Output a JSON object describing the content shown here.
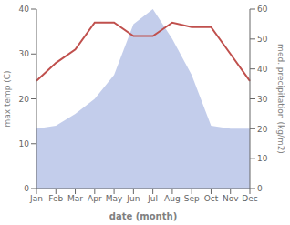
{
  "chart_data": {
    "type": "line",
    "categories": [
      "Jan",
      "Feb",
      "Mar",
      "Apr",
      "May",
      "Jun",
      "Jul",
      "Aug",
      "Sep",
      "Oct",
      "Nov",
      "Dec"
    ],
    "series": [
      {
        "type": "area",
        "axis": "y2",
        "color": "#b8c4e8",
        "values": [
          20,
          21,
          25,
          30,
          38,
          55,
          60,
          50,
          38,
          21,
          20,
          20
        ]
      },
      {
        "type": "line",
        "color": "#c0504d",
        "values": [
          24,
          28,
          31,
          37,
          37,
          34,
          34,
          37,
          36,
          36,
          30,
          24
        ]
      }
    ],
    "xlabel": "date (month)",
    "ylabel": "max temp (C)",
    "y2label": "med. precipitation (kg/m2)",
    "ylim": [
      0,
      40
    ],
    "yticks": [
      0,
      10,
      20,
      30,
      40
    ],
    "y2lim": [
      0,
      60
    ],
    "y2ticks": [
      0,
      10,
      20,
      30,
      40,
      50,
      60
    ],
    "grid": false
  }
}
